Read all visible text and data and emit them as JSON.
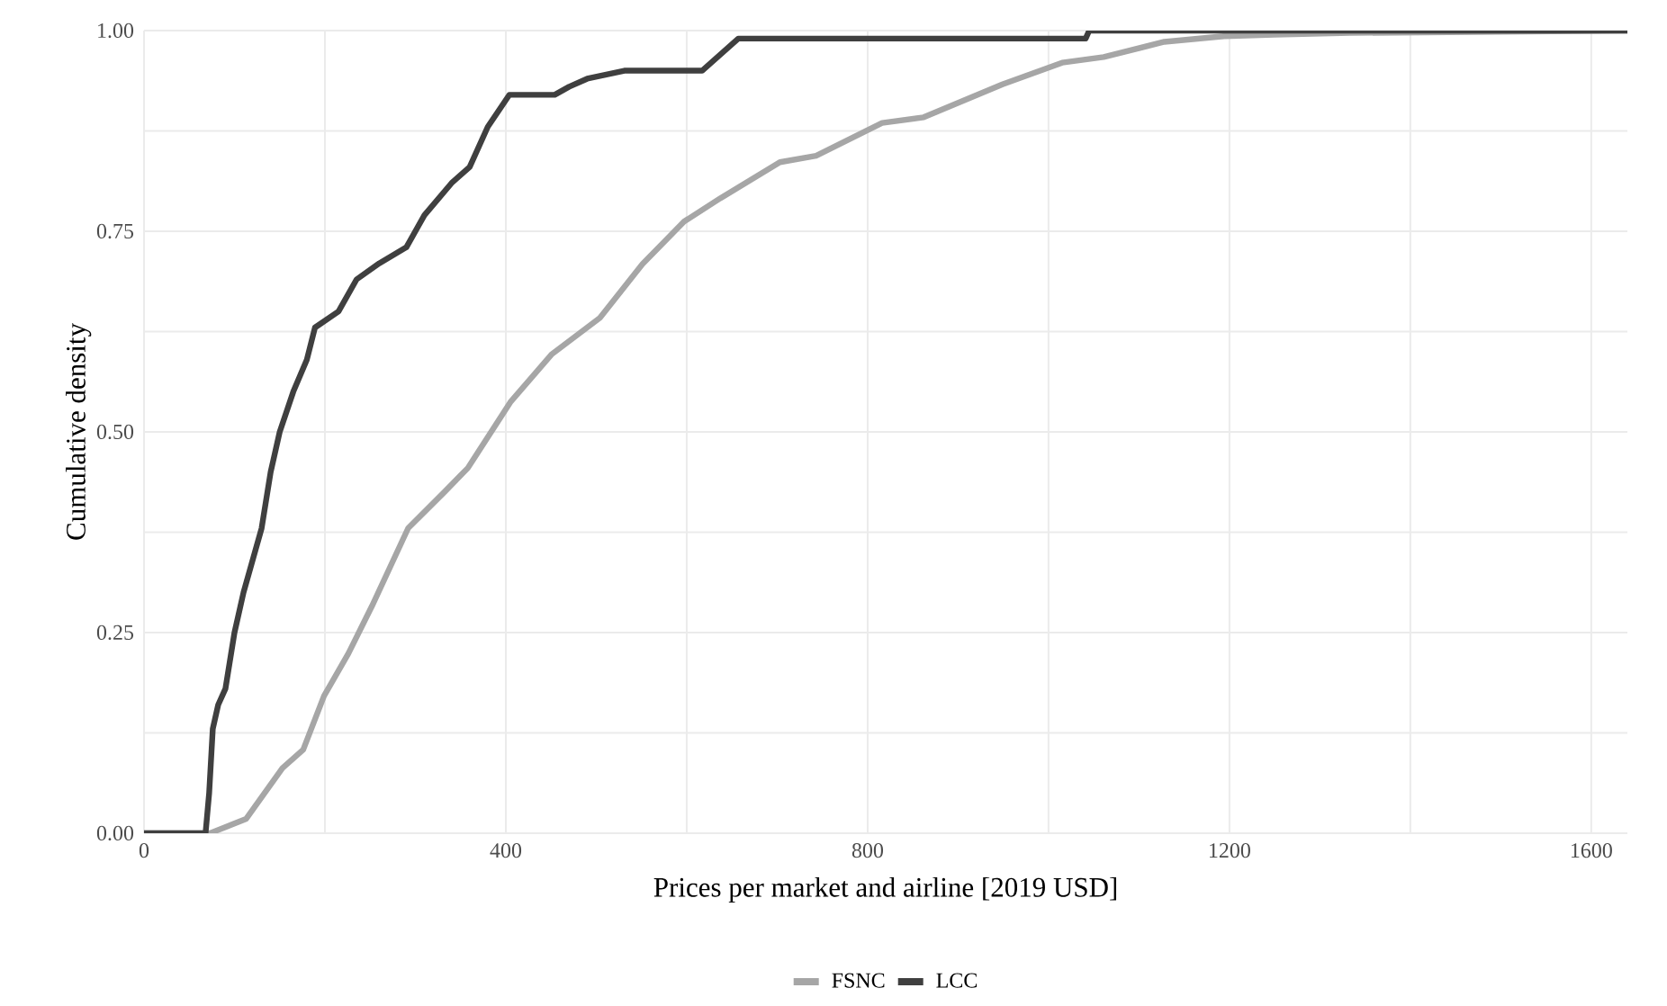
{
  "chart_data": {
    "type": "line",
    "xlabel": "Prices per market and airline [2019 USD]",
    "ylabel": "Cumulative density",
    "xlim": [
      0,
      1640
    ],
    "ylim": [
      0,
      1
    ],
    "xticks": [
      0,
      {
        "value": 200,
        "label": null
      },
      400,
      {
        "value": 600,
        "label": null
      },
      800,
      {
        "value": 1000,
        "label": null
      },
      1200,
      {
        "value": 1400,
        "label": null
      },
      1600
    ],
    "yticks": [
      {
        "value": 0,
        "label": "0.00"
      },
      {
        "value": 0.125,
        "label": null
      },
      {
        "value": 0.25,
        "label": "0.25"
      },
      {
        "value": 0.375,
        "label": null
      },
      {
        "value": 0.5,
        "label": "0.50"
      },
      {
        "value": 0.625,
        "label": null
      },
      {
        "value": 0.75,
        "label": "0.75"
      },
      {
        "value": 0.875,
        "label": null
      },
      {
        "value": 1,
        "label": "1.00"
      }
    ],
    "grid": true,
    "legend": "bottom",
    "line_style": "solid",
    "marker": "none",
    "series": [
      {
        "name": "FSNC",
        "color": "#a6a6a6",
        "x": [
          0,
          73,
          113,
          153,
          176,
          199,
          226,
          252,
          292,
          332,
          358,
          405,
          451,
          504,
          551,
          597,
          637,
          703,
          743,
          816,
          862,
          949,
          1015,
          1061,
          1128,
          1194,
          1250,
          1333,
          1640
        ],
        "values": [
          0,
          0,
          0.018,
          0.081,
          0.104,
          0.171,
          0.224,
          0.283,
          0.38,
          0.425,
          0.455,
          0.537,
          0.597,
          0.642,
          0.709,
          0.762,
          0.791,
          0.836,
          0.844,
          0.885,
          0.892,
          0.933,
          0.96,
          0.967,
          0.986,
          0.993,
          0.995,
          0.997,
          1
        ]
      },
      {
        "name": "LCC",
        "color": "#3f3f3f",
        "x": [
          0,
          68,
          72,
          76,
          82,
          90,
          100,
          110,
          120,
          130,
          140,
          150,
          165,
          180,
          189,
          215,
          235,
          260,
          290,
          310,
          340,
          360,
          380,
          404,
          454,
          470,
          490,
          531,
          617,
          657,
          1041,
          1045,
          1640
        ],
        "values": [
          0,
          0,
          0.05,
          0.13,
          0.16,
          0.18,
          0.25,
          0.3,
          0.34,
          0.38,
          0.45,
          0.5,
          0.55,
          0.59,
          0.63,
          0.65,
          0.69,
          0.71,
          0.73,
          0.77,
          0.81,
          0.83,
          0.88,
          0.92,
          0.92,
          0.93,
          0.94,
          0.95,
          0.95,
          0.99,
          0.99,
          1,
          1
        ]
      }
    ]
  }
}
